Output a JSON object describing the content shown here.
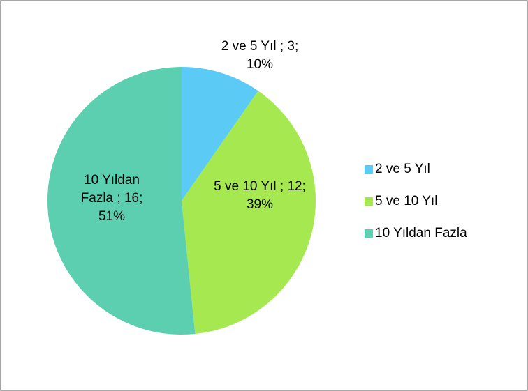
{
  "chart_data": {
    "type": "pie",
    "categories": [
      "2 ve 5 Yıl",
      "5 ve 10 Yıl",
      "10 Yıldan Fazla"
    ],
    "values": [
      3,
      12,
      16
    ],
    "value_labels": [
      "2 ve 5 Yıl ; 3; 10%",
      "5 ve 10 Yıl ; 12; 39%",
      "10 Yıldan Fazla ; 16; 51%"
    ],
    "colors": [
      "#5bcbf5",
      "#a6e84f",
      "#5dcfb1"
    ],
    "legend": "right"
  }
}
